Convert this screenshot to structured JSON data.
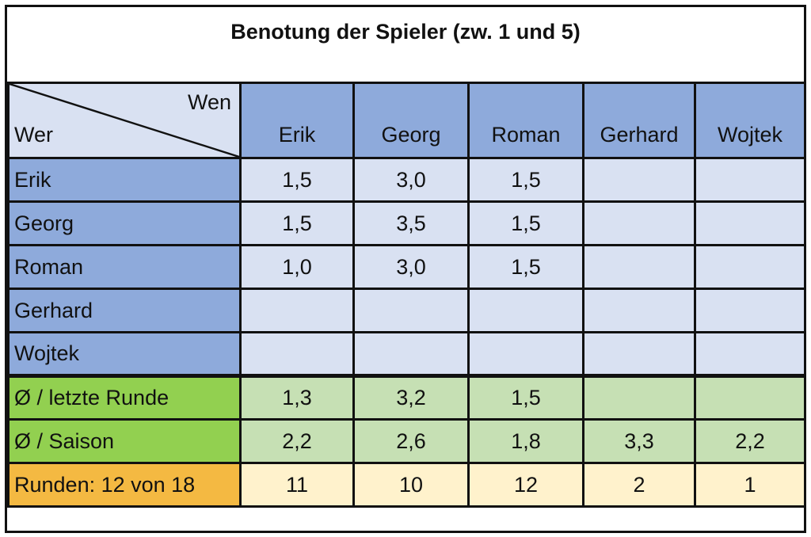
{
  "title": "Benotung der Spieler (zw. 1 und 5)",
  "corner": {
    "top": "Wen",
    "bottom": "Wer"
  },
  "columns": [
    "Erik",
    "Georg",
    "Roman",
    "Gerhard",
    "Wojtek"
  ],
  "rows": [
    {
      "label": "Erik",
      "values": [
        "1,5",
        "3,0",
        "1,5",
        "",
        ""
      ]
    },
    {
      "label": "Georg",
      "values": [
        "1,5",
        "3,5",
        "1,5",
        "",
        ""
      ]
    },
    {
      "label": "Roman",
      "values": [
        "1,0",
        "3,0",
        "1,5",
        "",
        ""
      ]
    },
    {
      "label": "Gerhard",
      "values": [
        "",
        "",
        "",
        "",
        ""
      ]
    },
    {
      "label": "Wojtek",
      "values": [
        "",
        "",
        "",
        "",
        ""
      ]
    }
  ],
  "summary": [
    {
      "label": "Ø / letzte Runde",
      "values": [
        "1,3",
        "3,2",
        "1,5",
        "",
        ""
      ]
    },
    {
      "label": "Ø / Saison",
      "values": [
        "2,2",
        "2,6",
        "1,8",
        "3,3",
        "2,2"
      ]
    }
  ],
  "rounds": {
    "label": "Runden: 12 von 18",
    "values": [
      "11",
      "10",
      "12",
      "2",
      "1"
    ]
  },
  "colors": {
    "header_blue": "#8eaadb",
    "cell_blue": "#d9e1f2",
    "green": "#92d050",
    "green_light": "#c6e0b4",
    "orange": "#f4b942",
    "orange_light": "#fff2cc"
  }
}
